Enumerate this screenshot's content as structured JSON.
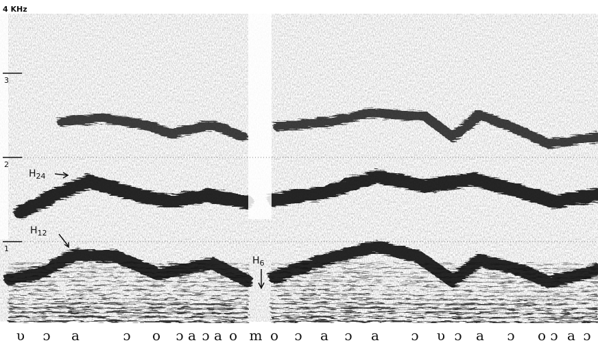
{
  "frequency_axis": {
    "top_label": "4 KHz",
    "ticks": [
      "3",
      "2",
      "1"
    ]
  },
  "annotations": [
    {
      "base": "H",
      "sub": "24"
    },
    {
      "base": "H",
      "sub": "12"
    },
    {
      "base": "H",
      "sub": "6"
    }
  ],
  "phonetic_symbols": [
    "υ",
    "ɔ",
    "a",
    "ɔ",
    "o",
    "ɔ",
    "a",
    "ɔ",
    "a",
    "o",
    "m",
    "o",
    "ɔ",
    "a",
    "ɔ",
    "a",
    "ɔ",
    "υ",
    "ɔ",
    "a",
    "ɔ",
    "o",
    "ɔ",
    "a",
    "ɔ"
  ]
}
